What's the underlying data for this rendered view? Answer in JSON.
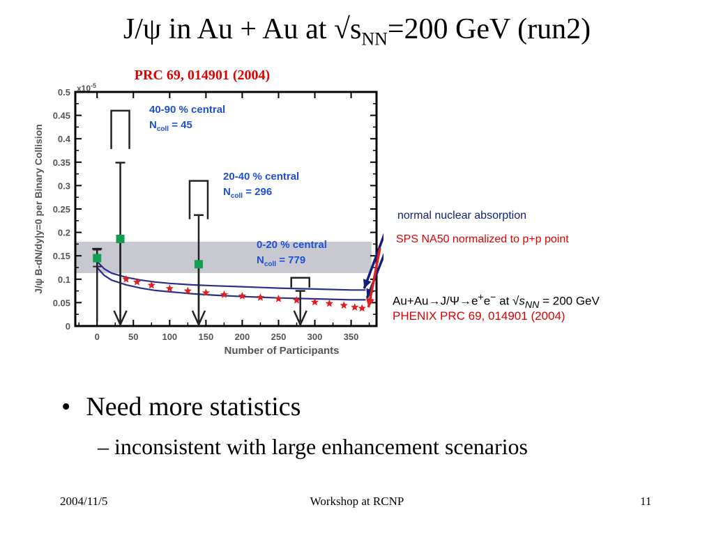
{
  "slide": {
    "title_prefix": "J/ψ in Au + Au at √s",
    "title_sub": "NN",
    "title_suffix": "=200 GeV (run2)",
    "reference": "PRC 69, 014901 (2004)",
    "bullet": "Need more statistics",
    "sub_bullet": "– inconsistent with large enhancement scenarios",
    "footer_date": "2004/11/5",
    "footer_center": "Workshop at RCNP",
    "footer_page": "11",
    "side_labels": {
      "normal_absorption": "normal nuclear absorption",
      "sps_na50": "SPS NA50 normalized to p+p point",
      "reaction_prefix": "Au+Au→J/Ψ→e",
      "reaction_e_plus": "+",
      "reaction_mid": "e",
      "reaction_e_minus": "−",
      "reaction_at": " at √",
      "reaction_s": "s",
      "reaction_nn": "NN",
      "reaction_energy": " = 200 GeV",
      "phenix_ref": "PHENIX PRC 69, 014901 (2004)"
    }
  },
  "chart_data": {
    "type": "scatter",
    "ylabel": "J/ψ  B-dN/dy|y=0 per Binary Collision",
    "xlabel": "Number of Participants",
    "y_multiplier": "x10",
    "y_multiplier_exp": "-5",
    "xlim": [
      -30,
      385
    ],
    "ylim": [
      0,
      0.5
    ],
    "x_ticks": [
      0,
      50,
      100,
      150,
      200,
      250,
      300,
      350
    ],
    "y_ticks": [
      0,
      0.05,
      0.1,
      0.15,
      0.2,
      0.25,
      0.3,
      0.35,
      0.4,
      0.45,
      0.5
    ],
    "pp_band": {
      "x": [
        -30,
        378
      ],
      "y": [
        0.113,
        0.18
      ],
      "color": "#c8c8d0"
    },
    "data_points": [
      {
        "name": "p+p",
        "x": 0,
        "y": 0.145,
        "err_low": 0.145,
        "err_high": 0.02,
        "color": "#10a050"
      },
      {
        "name": "40-90 % central",
        "x": 32,
        "y": 0.186,
        "err_low": 0.186,
        "err_high": 0.163,
        "upper_limit": 0.46,
        "color": "#10a050"
      },
      {
        "name": "20-40 % central",
        "x": 140,
        "y": 0.132,
        "err_low": 0.132,
        "err_high": 0.105,
        "upper_limit": 0.31,
        "color": "#10a050"
      },
      {
        "name": "0-20 % central",
        "x": 280,
        "y": 0,
        "err_low": 0,
        "err_high": 0.075,
        "upper_limit": 0.103,
        "color": "#10a050"
      }
    ],
    "annotations": [
      {
        "line1": "40-90 % central",
        "ncoll": "45"
      },
      {
        "line1": "20-40 % central",
        "ncoll": "296"
      },
      {
        "line1": "0-20 % central",
        "ncoll": "779"
      }
    ],
    "ncoll_prefix": "N",
    "ncoll_sub": "coll",
    "ncoll_eq": " = ",
    "series": [
      {
        "name": "normal nuclear absorption",
        "color": "#2a2f8a",
        "x": [
          0,
          10,
          20,
          40,
          60,
          80,
          100,
          130,
          160,
          200,
          250,
          300,
          350,
          370
        ],
        "y": [
          0.138,
          0.122,
          0.113,
          0.104,
          0.098,
          0.094,
          0.091,
          0.088,
          0.086,
          0.084,
          0.081,
          0.079,
          0.077,
          0.077
        ]
      },
      {
        "name": "normal nuclear absorption",
        "color": "#2a2f8a",
        "x": [
          0,
          10,
          20,
          40,
          60,
          80,
          100,
          130,
          160,
          200,
          250,
          300,
          350,
          370
        ],
        "y": [
          0.125,
          0.108,
          0.098,
          0.088,
          0.081,
          0.076,
          0.073,
          0.069,
          0.066,
          0.063,
          0.06,
          0.058,
          0.056,
          0.056
        ]
      },
      {
        "name": "SPS NA50 normalized to p+p point",
        "color": "#e02020",
        "x": [
          40,
          55,
          75,
          100,
          125,
          150,
          175,
          200,
          225,
          250,
          275,
          300,
          320,
          340,
          355,
          365
        ],
        "y": [
          0.1,
          0.094,
          0.087,
          0.08,
          0.075,
          0.071,
          0.067,
          0.064,
          0.061,
          0.058,
          0.055,
          0.051,
          0.048,
          0.044,
          0.04,
          0.038
        ]
      }
    ]
  }
}
